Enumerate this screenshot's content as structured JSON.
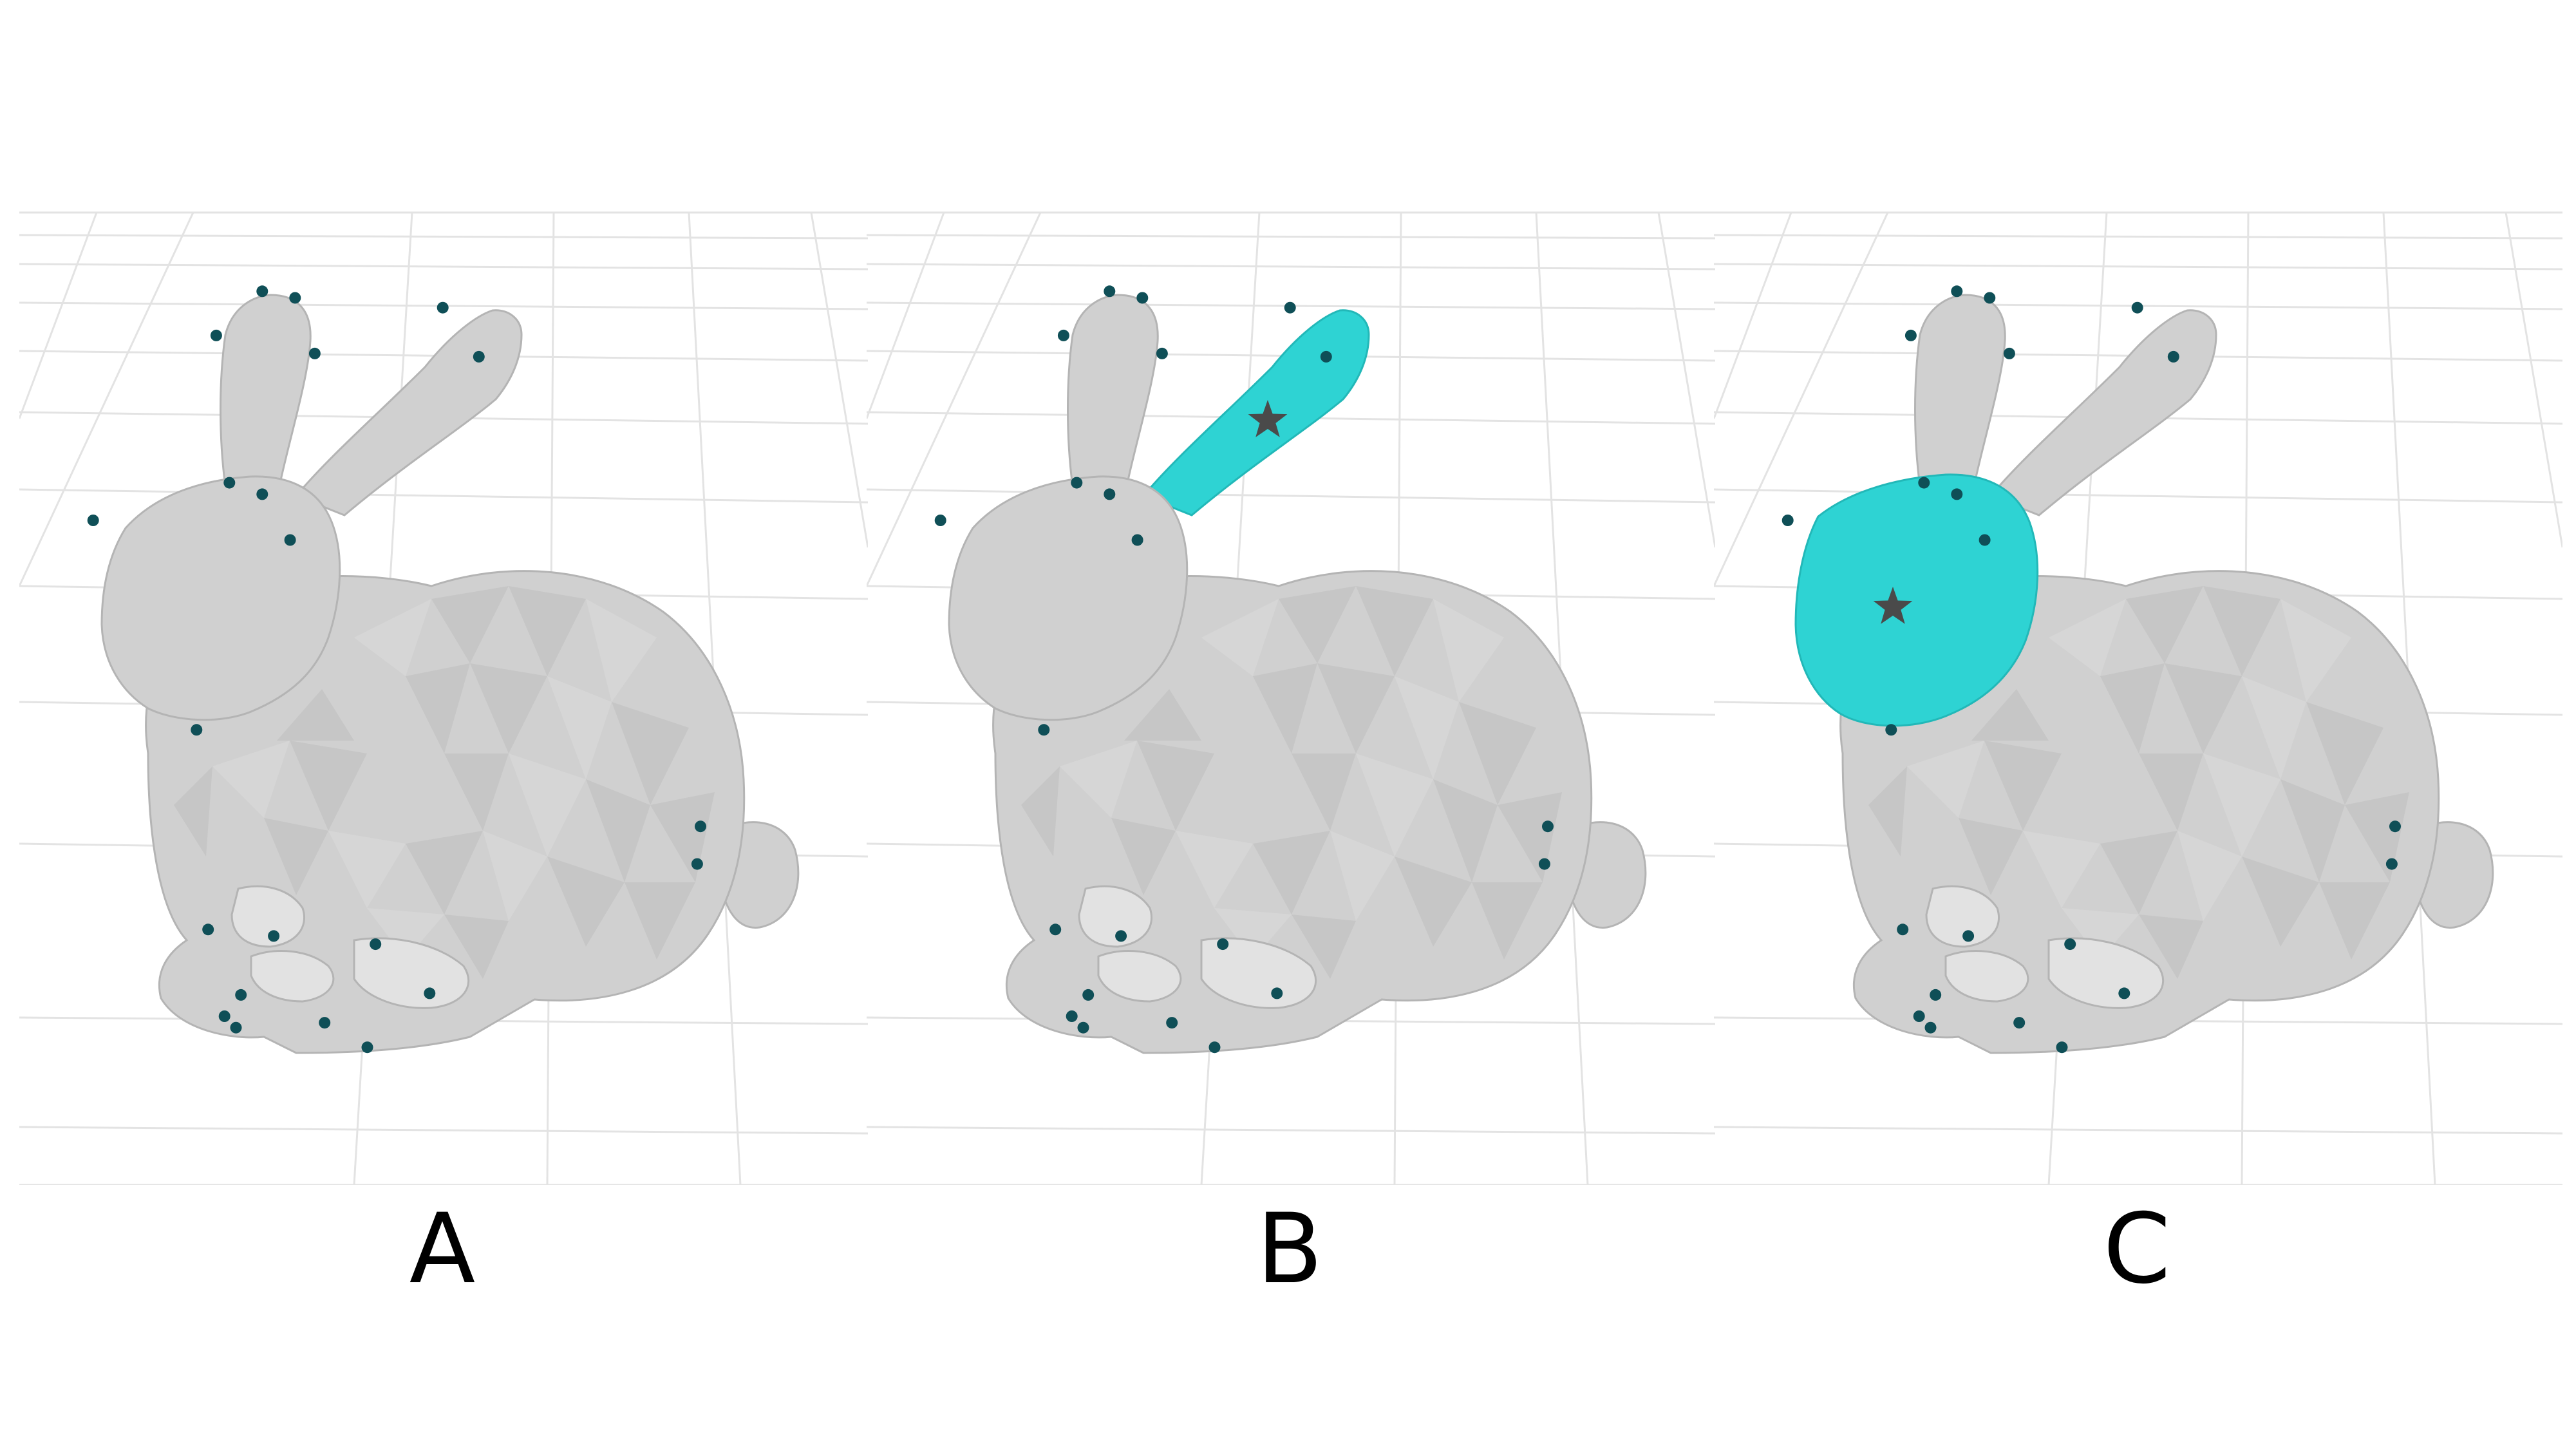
{
  "panels": [
    {
      "id": "a",
      "label": "A",
      "highlight": "none"
    },
    {
      "id": "b",
      "label": "B",
      "highlight": "right-ear"
    },
    {
      "id": "c",
      "label": "C",
      "highlight": "head"
    }
  ],
  "colors": {
    "mesh": "#d0d0d0",
    "mesh_dark": "#b4b4b4",
    "mesh_light": "#e2e2e2",
    "highlight": "#2ed3d3",
    "keypoint": "#0f4f57",
    "star": "#4a4a4a",
    "grid": "#e3e3e3"
  },
  "icons": {
    "keypoint": "dot",
    "selected_point": "star-icon"
  }
}
